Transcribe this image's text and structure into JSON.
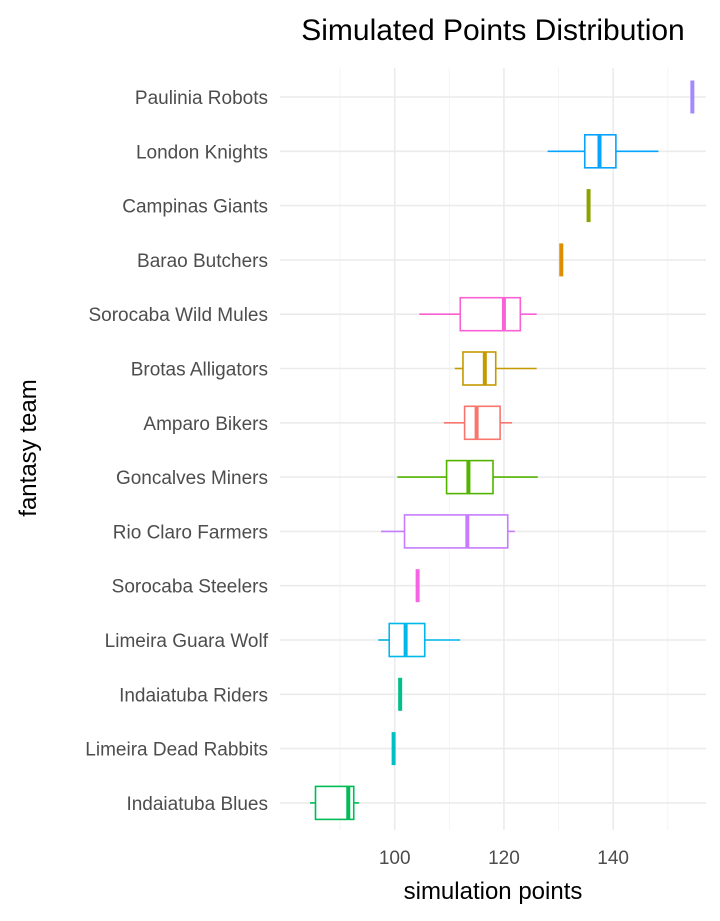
{
  "chart_data": {
    "type": "boxplot",
    "title": "Simulated Points Distribution",
    "xlabel": "simulation points",
    "ylabel": "fantasy team",
    "xlim": [
      79,
      157
    ],
    "x_ticks": [
      100,
      120,
      140
    ],
    "x_minor_ticks": [
      90,
      110,
      130,
      150
    ],
    "grid": true,
    "legend": "none",
    "categories": [
      "Paulinia Robots",
      "London Knights",
      "Campinas Giants",
      "Barao Butchers",
      "Sorocaba Wild Mules",
      "Brotas Alligators",
      "Amparo Bikers",
      "Goncalves Miners",
      "Rio Claro Farmers",
      "Sorocaba Steelers",
      "Limeira Guara Wolf",
      "Indaiatuba Riders",
      "Limeira Dead Rabbits",
      "Indaiatuba Blues"
    ],
    "series": [
      {
        "team": "Paulinia Robots",
        "color": "#a58aff",
        "min": 154.5,
        "q1": 154.5,
        "median": 154.5,
        "q3": 154.5,
        "max": 154.5
      },
      {
        "team": "London Knights",
        "color": "#06a4ff",
        "min": 128.0,
        "q1": 134.8,
        "median": 137.5,
        "q3": 140.5,
        "max": 148.3
      },
      {
        "team": "Campinas Giants",
        "color": "#8ba300",
        "min": 135.5,
        "q1": 135.5,
        "median": 135.5,
        "q3": 135.5,
        "max": 135.5
      },
      {
        "team": "Barao Butchers",
        "color": "#de8c00",
        "min": 130.5,
        "q1": 130.5,
        "median": 130.5,
        "q3": 130.5,
        "max": 130.5
      },
      {
        "team": "Sorocaba Wild Mules",
        "color": "#fb61d7",
        "min": 104.5,
        "q1": 112.0,
        "median": 120.0,
        "q3": 123.0,
        "max": 126.0
      },
      {
        "team": "Brotas Alligators",
        "color": "#c49a00",
        "min": 111.0,
        "q1": 112.5,
        "median": 116.5,
        "q3": 118.5,
        "max": 126.0
      },
      {
        "team": "Amparo Bikers",
        "color": "#f8766d",
        "min": 109.0,
        "q1": 112.8,
        "median": 115.0,
        "q3": 119.3,
        "max": 121.5
      },
      {
        "team": "Goncalves Miners",
        "color": "#53b400",
        "min": 100.5,
        "q1": 109.5,
        "median": 113.5,
        "q3": 118.0,
        "max": 126.2
      },
      {
        "team": "Rio Claro Farmers",
        "color": "#c77cff",
        "min": 97.5,
        "q1": 101.8,
        "median": 113.3,
        "q3": 120.7,
        "max": 122.0
      },
      {
        "team": "Sorocaba Steelers",
        "color": "#f564e3",
        "min": 104.2,
        "q1": 104.2,
        "median": 104.2,
        "q3": 104.2,
        "max": 104.2
      },
      {
        "team": "Limeira Guara Wolf",
        "color": "#00b6eb",
        "min": 97.0,
        "q1": 99.0,
        "median": 102.0,
        "q3": 105.5,
        "max": 112.0
      },
      {
        "team": "Indaiatuba Riders",
        "color": "#00c08b",
        "min": 101.0,
        "q1": 101.0,
        "median": 101.0,
        "q3": 101.0,
        "max": 101.0
      },
      {
        "team": "Limeira Dead Rabbits",
        "color": "#00bfc4",
        "min": 99.8,
        "q1": 99.8,
        "median": 99.8,
        "q3": 99.8,
        "max": 99.8
      },
      {
        "team": "Indaiatuba Blues",
        "color": "#00bc56",
        "min": 84.5,
        "q1": 85.5,
        "median": 91.5,
        "q3": 92.5,
        "max": 93.5
      }
    ]
  }
}
